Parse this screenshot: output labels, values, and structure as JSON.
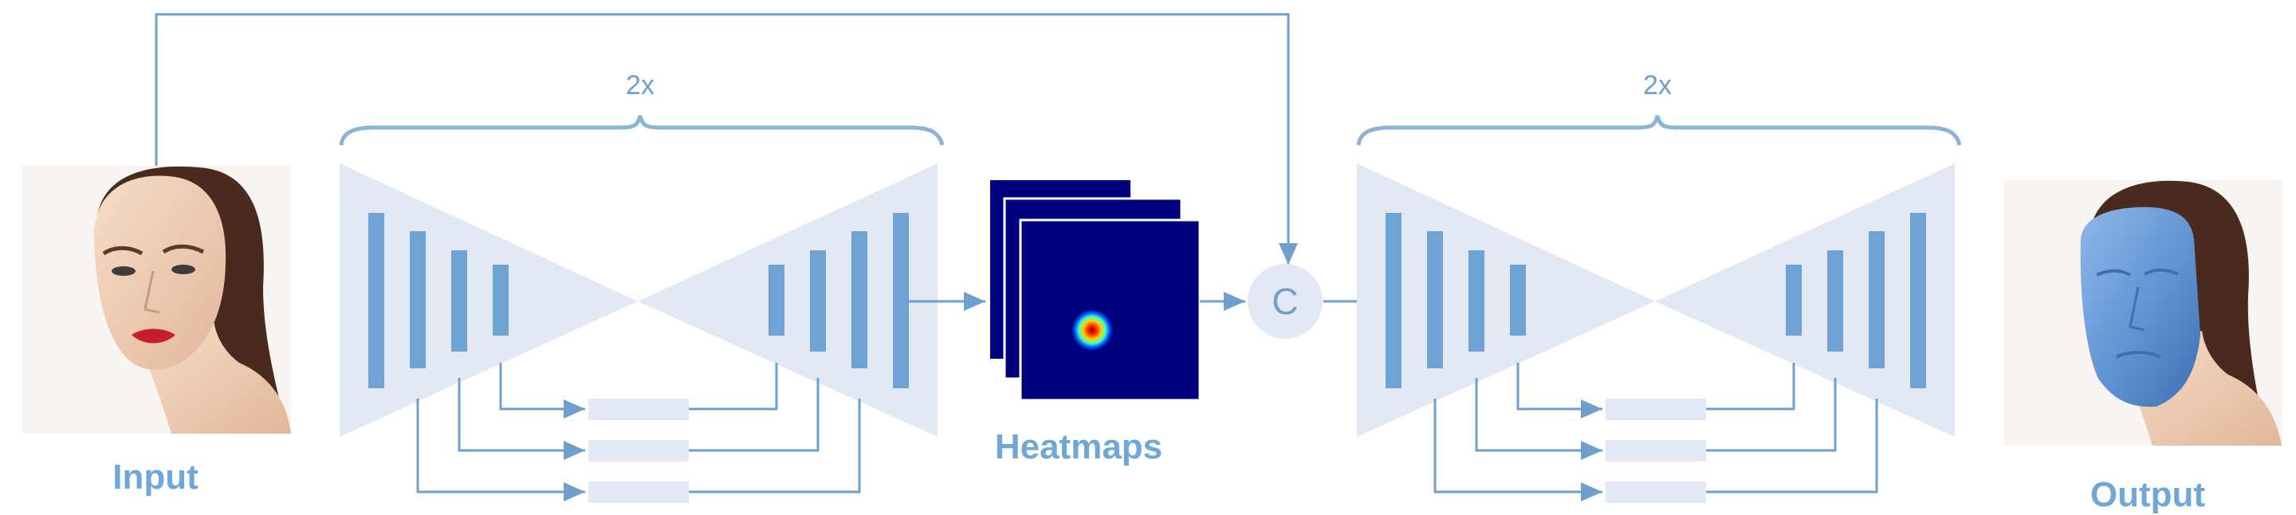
{
  "labels": {
    "input": "Input",
    "heatmaps": "Heatmaps",
    "output": "Output",
    "concat": "C",
    "repeat_left": "2x",
    "repeat_right": "2x"
  },
  "colors": {
    "accent": "#6fa8d8",
    "line": "#6f9fcc",
    "block_fill": "#e3e9f4",
    "bar_fill": "#6ea3d3",
    "heatmap_bg": "#00007f",
    "mesh": "#5b8fd0"
  },
  "icons": {
    "input_image": "face-photo-icon",
    "output_image": "face-with-3d-mesh-icon",
    "heatmap_stack": "heatmap-stack-icon"
  }
}
